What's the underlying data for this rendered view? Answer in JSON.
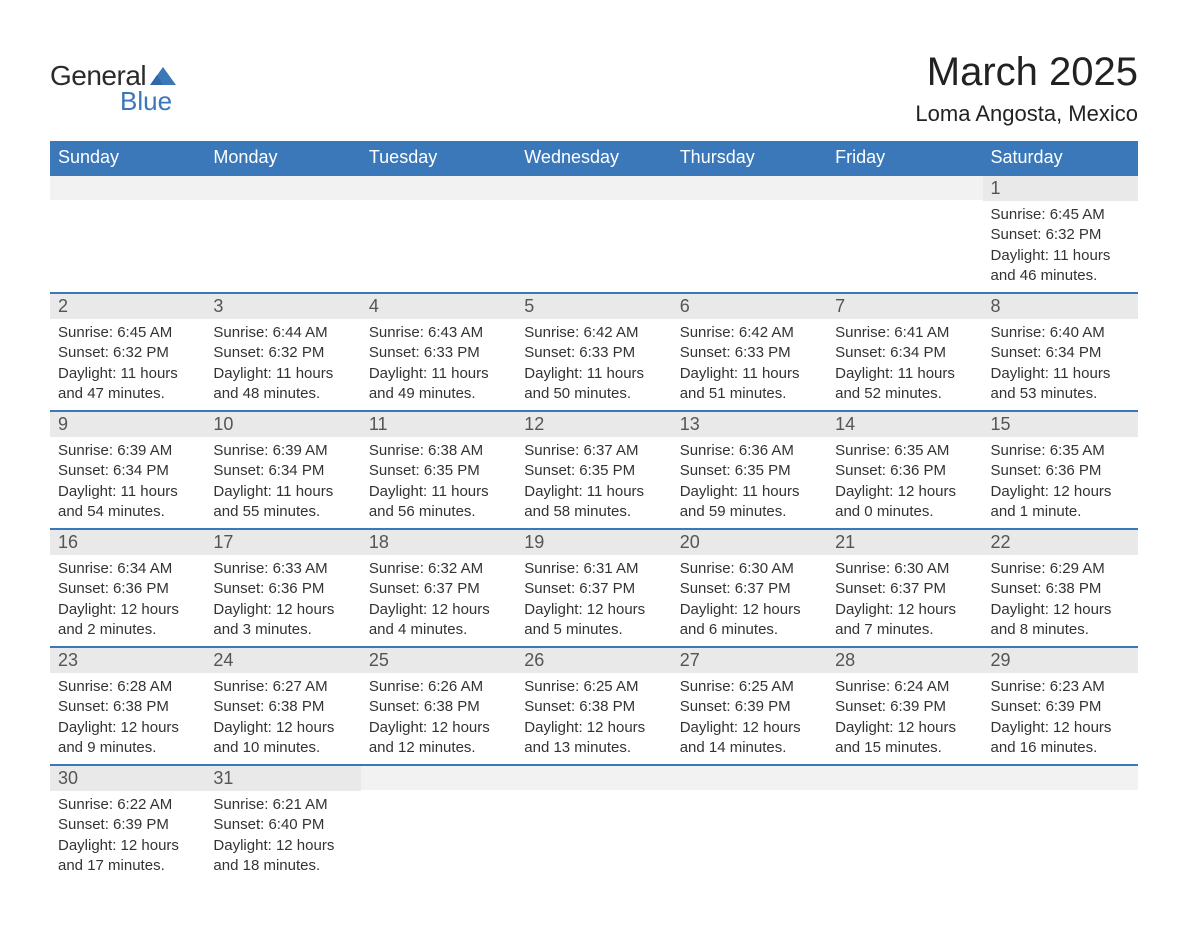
{
  "logo": {
    "text1": "General",
    "text2": "Blue",
    "shape_color": "#3a78b9"
  },
  "header": {
    "month": "March 2025",
    "location": "Loma Angosta, Mexico"
  },
  "colors": {
    "header_bg": "#3a78b9",
    "header_text": "#ffffff",
    "daynum_bg": "#e9e9e9",
    "row_border": "#3a78b9",
    "body_text": "#333333"
  },
  "weekdays": [
    "Sunday",
    "Monday",
    "Tuesday",
    "Wednesday",
    "Thursday",
    "Friday",
    "Saturday"
  ],
  "weeks": [
    [
      null,
      null,
      null,
      null,
      null,
      null,
      {
        "n": "1",
        "sr": "Sunrise: 6:45 AM",
        "ss": "Sunset: 6:32 PM",
        "d1": "Daylight: 11 hours",
        "d2": "and 46 minutes."
      }
    ],
    [
      {
        "n": "2",
        "sr": "Sunrise: 6:45 AM",
        "ss": "Sunset: 6:32 PM",
        "d1": "Daylight: 11 hours",
        "d2": "and 47 minutes."
      },
      {
        "n": "3",
        "sr": "Sunrise: 6:44 AM",
        "ss": "Sunset: 6:32 PM",
        "d1": "Daylight: 11 hours",
        "d2": "and 48 minutes."
      },
      {
        "n": "4",
        "sr": "Sunrise: 6:43 AM",
        "ss": "Sunset: 6:33 PM",
        "d1": "Daylight: 11 hours",
        "d2": "and 49 minutes."
      },
      {
        "n": "5",
        "sr": "Sunrise: 6:42 AM",
        "ss": "Sunset: 6:33 PM",
        "d1": "Daylight: 11 hours",
        "d2": "and 50 minutes."
      },
      {
        "n": "6",
        "sr": "Sunrise: 6:42 AM",
        "ss": "Sunset: 6:33 PM",
        "d1": "Daylight: 11 hours",
        "d2": "and 51 minutes."
      },
      {
        "n": "7",
        "sr": "Sunrise: 6:41 AM",
        "ss": "Sunset: 6:34 PM",
        "d1": "Daylight: 11 hours",
        "d2": "and 52 minutes."
      },
      {
        "n": "8",
        "sr": "Sunrise: 6:40 AM",
        "ss": "Sunset: 6:34 PM",
        "d1": "Daylight: 11 hours",
        "d2": "and 53 minutes."
      }
    ],
    [
      {
        "n": "9",
        "sr": "Sunrise: 6:39 AM",
        "ss": "Sunset: 6:34 PM",
        "d1": "Daylight: 11 hours",
        "d2": "and 54 minutes."
      },
      {
        "n": "10",
        "sr": "Sunrise: 6:39 AM",
        "ss": "Sunset: 6:34 PM",
        "d1": "Daylight: 11 hours",
        "d2": "and 55 minutes."
      },
      {
        "n": "11",
        "sr": "Sunrise: 6:38 AM",
        "ss": "Sunset: 6:35 PM",
        "d1": "Daylight: 11 hours",
        "d2": "and 56 minutes."
      },
      {
        "n": "12",
        "sr": "Sunrise: 6:37 AM",
        "ss": "Sunset: 6:35 PM",
        "d1": "Daylight: 11 hours",
        "d2": "and 58 minutes."
      },
      {
        "n": "13",
        "sr": "Sunrise: 6:36 AM",
        "ss": "Sunset: 6:35 PM",
        "d1": "Daylight: 11 hours",
        "d2": "and 59 minutes."
      },
      {
        "n": "14",
        "sr": "Sunrise: 6:35 AM",
        "ss": "Sunset: 6:36 PM",
        "d1": "Daylight: 12 hours",
        "d2": "and 0 minutes."
      },
      {
        "n": "15",
        "sr": "Sunrise: 6:35 AM",
        "ss": "Sunset: 6:36 PM",
        "d1": "Daylight: 12 hours",
        "d2": "and 1 minute."
      }
    ],
    [
      {
        "n": "16",
        "sr": "Sunrise: 6:34 AM",
        "ss": "Sunset: 6:36 PM",
        "d1": "Daylight: 12 hours",
        "d2": "and 2 minutes."
      },
      {
        "n": "17",
        "sr": "Sunrise: 6:33 AM",
        "ss": "Sunset: 6:36 PM",
        "d1": "Daylight: 12 hours",
        "d2": "and 3 minutes."
      },
      {
        "n": "18",
        "sr": "Sunrise: 6:32 AM",
        "ss": "Sunset: 6:37 PM",
        "d1": "Daylight: 12 hours",
        "d2": "and 4 minutes."
      },
      {
        "n": "19",
        "sr": "Sunrise: 6:31 AM",
        "ss": "Sunset: 6:37 PM",
        "d1": "Daylight: 12 hours",
        "d2": "and 5 minutes."
      },
      {
        "n": "20",
        "sr": "Sunrise: 6:30 AM",
        "ss": "Sunset: 6:37 PM",
        "d1": "Daylight: 12 hours",
        "d2": "and 6 minutes."
      },
      {
        "n": "21",
        "sr": "Sunrise: 6:30 AM",
        "ss": "Sunset: 6:37 PM",
        "d1": "Daylight: 12 hours",
        "d2": "and 7 minutes."
      },
      {
        "n": "22",
        "sr": "Sunrise: 6:29 AM",
        "ss": "Sunset: 6:38 PM",
        "d1": "Daylight: 12 hours",
        "d2": "and 8 minutes."
      }
    ],
    [
      {
        "n": "23",
        "sr": "Sunrise: 6:28 AM",
        "ss": "Sunset: 6:38 PM",
        "d1": "Daylight: 12 hours",
        "d2": "and 9 minutes."
      },
      {
        "n": "24",
        "sr": "Sunrise: 6:27 AM",
        "ss": "Sunset: 6:38 PM",
        "d1": "Daylight: 12 hours",
        "d2": "and 10 minutes."
      },
      {
        "n": "25",
        "sr": "Sunrise: 6:26 AM",
        "ss": "Sunset: 6:38 PM",
        "d1": "Daylight: 12 hours",
        "d2": "and 12 minutes."
      },
      {
        "n": "26",
        "sr": "Sunrise: 6:25 AM",
        "ss": "Sunset: 6:38 PM",
        "d1": "Daylight: 12 hours",
        "d2": "and 13 minutes."
      },
      {
        "n": "27",
        "sr": "Sunrise: 6:25 AM",
        "ss": "Sunset: 6:39 PM",
        "d1": "Daylight: 12 hours",
        "d2": "and 14 minutes."
      },
      {
        "n": "28",
        "sr": "Sunrise: 6:24 AM",
        "ss": "Sunset: 6:39 PM",
        "d1": "Daylight: 12 hours",
        "d2": "and 15 minutes."
      },
      {
        "n": "29",
        "sr": "Sunrise: 6:23 AM",
        "ss": "Sunset: 6:39 PM",
        "d1": "Daylight: 12 hours",
        "d2": "and 16 minutes."
      }
    ],
    [
      {
        "n": "30",
        "sr": "Sunrise: 6:22 AM",
        "ss": "Sunset: 6:39 PM",
        "d1": "Daylight: 12 hours",
        "d2": "and 17 minutes."
      },
      {
        "n": "31",
        "sr": "Sunrise: 6:21 AM",
        "ss": "Sunset: 6:40 PM",
        "d1": "Daylight: 12 hours",
        "d2": "and 18 minutes."
      },
      null,
      null,
      null,
      null,
      null
    ]
  ]
}
